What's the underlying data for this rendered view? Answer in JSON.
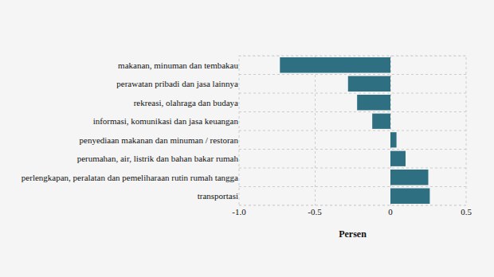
{
  "chart_data": {
    "type": "bar",
    "orientation": "horizontal",
    "categories": [
      "makanan, minuman dan tembakau",
      "perawatan pribadi dan jasa lainnya",
      "rekreasi, olahraga dan budaya",
      "informasi, komunikasi dan jasa keuangan",
      "penyediaan makanan dan minuman / restoran",
      "perumahan, air, listrik dan bahan bakar rumah",
      "perlengkapan, peralatan dan pemeliharaan rutin rumah tangga",
      "transportasi"
    ],
    "values": [
      -0.73,
      -0.28,
      -0.22,
      -0.12,
      0.04,
      0.1,
      0.25,
      0.26
    ],
    "color": "#2e6f82",
    "x_label": "Persen",
    "xlim": [
      -1,
      0.5
    ],
    "xticks": [
      {
        "value": -1,
        "label": "-1.0"
      },
      -0.5,
      0,
      0.5
    ],
    "grid": true
  }
}
